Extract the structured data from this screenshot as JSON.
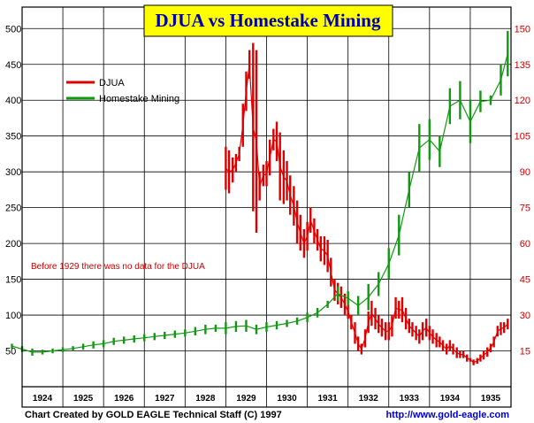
{
  "chart_data": {
    "type": "line",
    "title": "DJUA vs Homestake Mining",
    "annotation": "Before 1929 there was no data for the DJUA",
    "credit": "Chart Created by GOLD EAGLE Technical Staff (C) 1997",
    "url": "http://www.gold-eagle.com",
    "x_axis": {
      "categories": [
        "1924",
        "1925",
        "1926",
        "1927",
        "1928",
        "1929",
        "1930",
        "1931",
        "1932",
        "1933",
        "1934",
        "1935"
      ],
      "range": [
        1924,
        1936
      ]
    },
    "y_left": {
      "ticks": [
        "50",
        "100",
        "150",
        "200",
        "250",
        "300",
        "350",
        "400",
        "450",
        "500"
      ],
      "range": [
        0,
        530
      ]
    },
    "y_right": {
      "ticks": [
        "15",
        "30",
        "45",
        "60",
        "75",
        "90",
        "105",
        "120",
        "135",
        "150"
      ],
      "range": [
        0,
        159
      ]
    },
    "grid": true,
    "legend_position": "top-left",
    "series": [
      {
        "name": "DJUA",
        "axis": "left",
        "color": "#dd0000",
        "x": [
          1929.0,
          1929.08,
          1929.17,
          1929.25,
          1929.33,
          1929.42,
          1929.5,
          1929.58,
          1929.67,
          1929.75,
          1929.83,
          1929.92,
          1930.0,
          1930.08,
          1930.17,
          1930.25,
          1930.33,
          1930.42,
          1930.5,
          1930.58,
          1930.67,
          1930.75,
          1930.83,
          1930.92,
          1931.0,
          1931.08,
          1931.17,
          1931.25,
          1931.33,
          1931.42,
          1931.5,
          1931.58,
          1931.67,
          1931.75,
          1931.83,
          1931.92,
          1932.0,
          1932.08,
          1932.17,
          1932.25,
          1932.33,
          1932.42,
          1932.5,
          1932.58,
          1932.67,
          1932.75,
          1932.83,
          1932.92,
          1933.0,
          1933.08,
          1933.17,
          1933.25,
          1933.33,
          1933.42,
          1933.5,
          1933.58,
          1933.67,
          1933.75,
          1933.83,
          1933.92,
          1934.0,
          1934.08,
          1934.17,
          1934.25,
          1934.33,
          1934.42,
          1934.5,
          1934.58,
          1934.67,
          1934.75,
          1934.83,
          1934.92,
          1935.0,
          1935.08,
          1935.17,
          1935.25,
          1935.33,
          1935.42,
          1935.5,
          1935.58,
          1935.67,
          1935.75,
          1935.83,
          1935.92
        ],
        "high": [
          335,
          330,
          320,
          325,
          335,
          395,
          440,
          470,
          480,
          470,
          300,
          310,
          315,
          345,
          360,
          370,
          355,
          330,
          315,
          295,
          280,
          260,
          240,
          220,
          230,
          250,
          235,
          220,
          210,
          210,
          205,
          180,
          150,
          145,
          140,
          130,
          115,
          100,
          90,
          70,
          60,
          80,
          105,
          120,
          110,
          100,
          95,
          90,
          90,
          100,
          125,
          120,
          125,
          110,
          95,
          90,
          85,
          80,
          90,
          95,
          85,
          80,
          75,
          70,
          65,
          60,
          65,
          60,
          55,
          50,
          50,
          45,
          40,
          38,
          40,
          45,
          50,
          55,
          60,
          70,
          85,
          90,
          90,
          95
        ],
        "low": [
          275,
          270,
          285,
          300,
          315,
          335,
          385,
          430,
          245,
          215,
          260,
          280,
          280,
          295,
          330,
          315,
          260,
          255,
          260,
          240,
          225,
          200,
          190,
          180,
          190,
          215,
          200,
          190,
          175,
          170,
          160,
          140,
          120,
          115,
          110,
          100,
          95,
          80,
          60,
          50,
          45,
          55,
          75,
          85,
          80,
          75,
          70,
          65,
          65,
          70,
          95,
          95,
          90,
          80,
          75,
          70,
          65,
          60,
          65,
          70,
          65,
          60,
          55,
          55,
          50,
          45,
          50,
          45,
          40,
          40,
          40,
          35,
          35,
          30,
          32,
          35,
          38,
          42,
          48,
          55,
          70,
          72,
          75,
          80
        ]
      },
      {
        "name": "Homestake Mining",
        "axis": "right",
        "color": "#119911",
        "x": [
          1923.75,
          1924.0,
          1924.25,
          1924.5,
          1924.75,
          1925.0,
          1925.25,
          1925.5,
          1925.75,
          1926.0,
          1926.25,
          1926.5,
          1926.75,
          1927.0,
          1927.25,
          1927.5,
          1927.75,
          1928.0,
          1928.25,
          1928.5,
          1928.75,
          1929.0,
          1929.25,
          1929.5,
          1929.75,
          1930.0,
          1930.25,
          1930.5,
          1930.75,
          1931.0,
          1931.25,
          1931.5,
          1931.75,
          1932.0,
          1932.25,
          1932.5,
          1932.75,
          1933.0,
          1933.25,
          1933.5,
          1933.75,
          1934.0,
          1934.25,
          1934.5,
          1934.75,
          1935.0,
          1935.25,
          1935.5,
          1935.75,
          1935.92
        ],
        "high": [
          18,
          17,
          16,
          15.5,
          16,
          16.5,
          17,
          18,
          19,
          19.5,
          20.5,
          21,
          21.5,
          22,
          22.5,
          23,
          23.5,
          24,
          25,
          26,
          26,
          27,
          27.5,
          28,
          26,
          27,
          27.5,
          28,
          29,
          31,
          33,
          36,
          42,
          40,
          38,
          43,
          48,
          58,
          72,
          90,
          110,
          112,
          105,
          125,
          128,
          120,
          124,
          122,
          135,
          149
        ],
        "low": [
          16,
          14.5,
          13,
          13.5,
          14,
          14.5,
          15,
          15.5,
          16,
          16.5,
          17.5,
          18,
          18.5,
          19,
          19.5,
          20,
          20.5,
          21,
          21.5,
          22,
          23,
          22,
          23,
          23,
          22,
          23,
          24,
          25,
          26,
          27,
          29,
          33,
          36,
          34,
          30,
          32,
          38,
          45,
          55,
          75,
          90,
          95,
          92,
          110,
          112,
          102,
          115,
          118,
          122,
          130
        ]
      }
    ]
  }
}
